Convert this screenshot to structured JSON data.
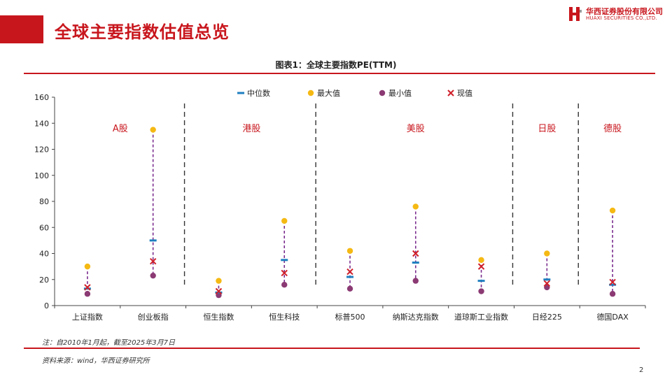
{
  "page": {
    "title": "全球主要指数估值总览",
    "logo_cn": "华西证券股份有限公司",
    "logo_en": "HUAXI SECURITIES CO.,LTD.",
    "note": "注：自2010年1月起，截至2025年3月7日",
    "source": "资料来源：wind，华西证券研究所",
    "page_number": "2"
  },
  "colors": {
    "brand": "#c8161d",
    "median": "#1f7fbf",
    "max": "#f5b914",
    "min": "#8b3a73",
    "current": "#d0202a",
    "range_line": "#7b2d8e"
  },
  "chart_data": {
    "type": "scatter",
    "title": "图表1：全球主要指数PE(TTM)",
    "categories": [
      "上证指数",
      "创业板指",
      "恒生指数",
      "恒生科技",
      "标普500",
      "纳斯达克指数",
      "道琼斯工业指数",
      "日经225",
      "德国DAX"
    ],
    "series": [
      {
        "name": "中位数",
        "marker": "dash",
        "values": [
          13,
          50,
          10,
          35,
          22,
          33,
          19,
          20,
          16
        ]
      },
      {
        "name": "最大值",
        "marker": "circle",
        "values": [
          30,
          135,
          19,
          65,
          42,
          76,
          35,
          40,
          73
        ]
      },
      {
        "name": "最小值",
        "marker": "circle",
        "values": [
          9,
          23,
          8,
          16,
          13,
          19,
          11,
          14,
          9
        ]
      },
      {
        "name": "现值",
        "marker": "x",
        "values": [
          14,
          34,
          11,
          25,
          26,
          40,
          30,
          17,
          18
        ]
      }
    ],
    "ylim": [
      0,
      160
    ],
    "yticks": [
      0,
      20,
      40,
      60,
      80,
      100,
      120,
      140,
      160
    ],
    "groups": [
      {
        "label": "A股",
        "start": 0,
        "end": 1
      },
      {
        "label": "港股",
        "start": 2,
        "end": 3
      },
      {
        "label": "美股",
        "start": 4,
        "end": 6
      },
      {
        "label": "日股",
        "start": 7,
        "end": 7
      },
      {
        "label": "德股",
        "start": 8,
        "end": 8
      }
    ],
    "legend_position": "top-center",
    "grid": false
  }
}
